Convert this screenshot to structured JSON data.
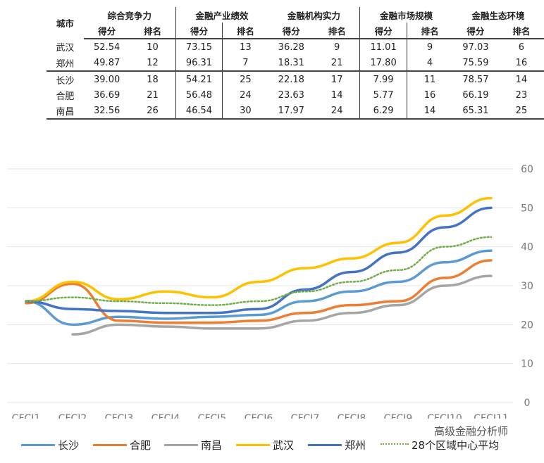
{
  "table": {
    "city_header": "城市",
    "groups": [
      "综合竞争力",
      "金融产业绩效",
      "金融机构实力",
      "金融市场规模",
      "金融生态环境"
    ],
    "sub": [
      "得分",
      "排名"
    ],
    "rows": [
      {
        "city": "武汉",
        "v": [
          "52.54",
          "10",
          "73.15",
          "13",
          "36.28",
          "9",
          "11.01",
          "9",
          "97.03",
          "6"
        ]
      },
      {
        "city": "郑州",
        "v": [
          "49.87",
          "12",
          "96.31",
          "7",
          "18.31",
          "21",
          "17.80",
          "4",
          "75.59",
          "16"
        ]
      },
      {
        "city": "长沙",
        "v": [
          "39.00",
          "18",
          "54.21",
          "25",
          "22.18",
          "17",
          "7.99",
          "11",
          "78.57",
          "14"
        ]
      },
      {
        "city": "合肥",
        "v": [
          "36.69",
          "21",
          "56.48",
          "24",
          "23.63",
          "14",
          "5.77",
          "16",
          "66.19",
          "23"
        ]
      },
      {
        "city": "南昌",
        "v": [
          "32.56",
          "26",
          "46.54",
          "30",
          "17.97",
          "24",
          "6.29",
          "14",
          "65.31",
          "25"
        ]
      }
    ]
  },
  "chart_data": {
    "type": "line",
    "categories": [
      "CFCI1",
      "CFCI2",
      "CFCI3",
      "CFCI4",
      "CFCI5",
      "CFCI6",
      "CFCI7",
      "CFCI8",
      "CFCI9",
      "CFCI10",
      "CFCI11"
    ],
    "ylim": [
      0,
      60
    ],
    "yticks": [
      0,
      10,
      20,
      30,
      40,
      50,
      60
    ],
    "y_axis_side": "right",
    "grid": true,
    "legend": "bottom",
    "series": [
      {
        "name": "长沙",
        "color": "#5b9bd5",
        "style": "solid",
        "values": [
          26,
          20,
          22,
          21.5,
          22,
          22.5,
          26,
          28.5,
          31,
          36,
          39
        ]
      },
      {
        "name": "合肥",
        "color": "#ed7d31",
        "style": "solid",
        "values": [
          25.5,
          30.5,
          21,
          20.5,
          20.5,
          21,
          23,
          25,
          26,
          32,
          36.5
        ]
      },
      {
        "name": "南昌",
        "color": "#a5a5a5",
        "style": "solid",
        "values": [
          null,
          17.5,
          20,
          19.5,
          19,
          19,
          21,
          23,
          25,
          30,
          32.5
        ]
      },
      {
        "name": "武汉",
        "color": "#ffc000",
        "style": "solid",
        "values": [
          26,
          31,
          26.5,
          28.5,
          27,
          31,
          34.5,
          37,
          41,
          48,
          52.5
        ]
      },
      {
        "name": "郑州",
        "color": "#4472c4",
        "style": "solid",
        "values": [
          26,
          24,
          23.5,
          23,
          23,
          24,
          29,
          33.5,
          38.5,
          45,
          50
        ]
      },
      {
        "name": "28个区域中心平均",
        "color": "#70ad47",
        "style": "dotted",
        "values": [
          26,
          27,
          26,
          25.5,
          25,
          26,
          28.5,
          31,
          34,
          40,
          42.5
        ]
      }
    ]
  },
  "watermark": "高级金融分析师"
}
